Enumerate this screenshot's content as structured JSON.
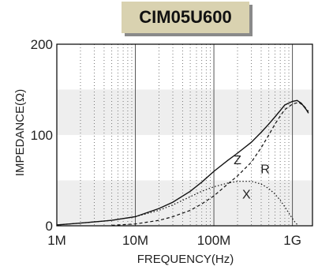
{
  "chart_data": {
    "type": "line",
    "title": "CIM05U600",
    "xlabel": "FREQUENCY(Hz)",
    "ylabel": "IMPEDANCE(Ω)",
    "x_scale": "log",
    "xlim": [
      1000000,
      1800000000
    ],
    "ylim": [
      0,
      200
    ],
    "x_ticks": [
      {
        "value": 1000000,
        "label": "1M"
      },
      {
        "value": 10000000,
        "label": "10M"
      },
      {
        "value": 100000000,
        "label": "100M"
      },
      {
        "value": 1000000000,
        "label": "1G"
      }
    ],
    "y_ticks": [
      {
        "value": 0,
        "label": "0"
      },
      {
        "value": 100,
        "label": "100"
      },
      {
        "value": 200,
        "label": "200"
      }
    ],
    "shaded_bands": [
      [
        0,
        50
      ],
      [
        100,
        150
      ]
    ],
    "grid": true,
    "series": [
      {
        "name": "Z",
        "style": "solid",
        "points": [
          [
            1000000,
            1
          ],
          [
            2000000,
            3
          ],
          [
            5000000,
            6
          ],
          [
            10000000,
            10
          ],
          [
            20000000,
            19
          ],
          [
            30000000,
            26
          ],
          [
            50000000,
            38
          ],
          [
            70000000,
            48
          ],
          [
            100000000,
            60
          ],
          [
            150000000,
            72
          ],
          [
            200000000,
            80
          ],
          [
            300000000,
            92
          ],
          [
            400000000,
            103
          ],
          [
            500000000,
            112
          ],
          [
            600000000,
            120
          ],
          [
            700000000,
            127
          ],
          [
            800000000,
            133
          ],
          [
            1000000000,
            137
          ],
          [
            1150000000,
            138
          ],
          [
            1300000000,
            135
          ],
          [
            1500000000,
            128
          ],
          [
            1600000000,
            124
          ]
        ]
      },
      {
        "name": "R",
        "style": "dashed",
        "points": [
          [
            5000000,
            0.5
          ],
          [
            10000000,
            2
          ],
          [
            20000000,
            6
          ],
          [
            30000000,
            10
          ],
          [
            50000000,
            17
          ],
          [
            70000000,
            24
          ],
          [
            100000000,
            33
          ],
          [
            150000000,
            46
          ],
          [
            200000000,
            55
          ],
          [
            300000000,
            70
          ],
          [
            400000000,
            86
          ],
          [
            500000000,
            100
          ],
          [
            600000000,
            112
          ],
          [
            700000000,
            121
          ],
          [
            800000000,
            128
          ],
          [
            1000000000,
            134
          ],
          [
            1200000000,
            136
          ],
          [
            1400000000,
            132
          ],
          [
            1600000000,
            126
          ]
        ]
      },
      {
        "name": "X",
        "style": "dotted",
        "points": [
          [
            1000000,
            1
          ],
          [
            2000000,
            3
          ],
          [
            5000000,
            6
          ],
          [
            10000000,
            10
          ],
          [
            20000000,
            17
          ],
          [
            30000000,
            23
          ],
          [
            50000000,
            32
          ],
          [
            70000000,
            38
          ],
          [
            100000000,
            43
          ],
          [
            150000000,
            47
          ],
          [
            200000000,
            49
          ],
          [
            300000000,
            49
          ],
          [
            400000000,
            46
          ],
          [
            500000000,
            41
          ],
          [
            600000000,
            35
          ],
          [
            700000000,
            28
          ],
          [
            800000000,
            21
          ],
          [
            900000000,
            14
          ],
          [
            1000000000,
            8
          ],
          [
            1100000000,
            3
          ],
          [
            1200000000,
            0
          ]
        ]
      }
    ],
    "series_labels": [
      {
        "text": "Z",
        "x": 200000000,
        "y": 68
      },
      {
        "text": "R",
        "x": 450000000,
        "y": 58
      },
      {
        "text": "X",
        "x": 260000000,
        "y": 30
      }
    ]
  }
}
